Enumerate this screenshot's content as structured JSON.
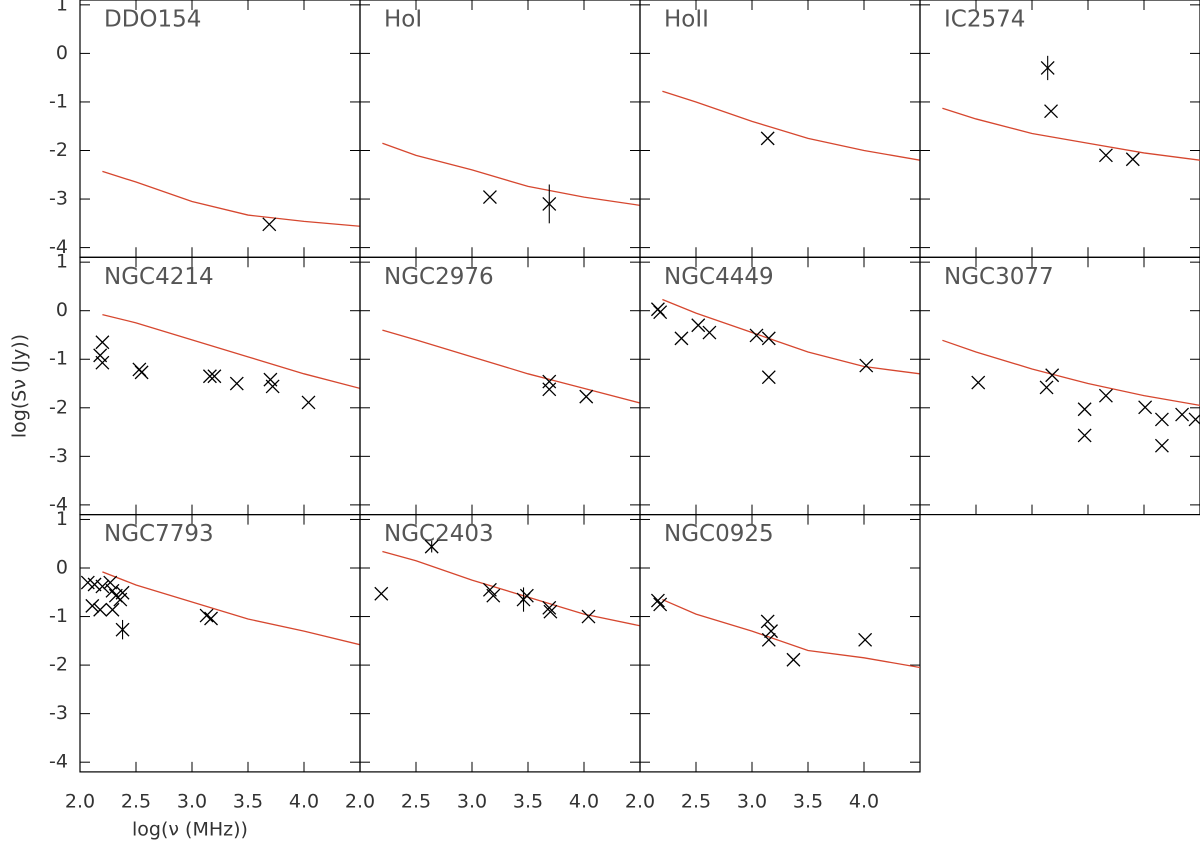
{
  "chart_data": {
    "type": "scatter",
    "xlabel": "log(ν (MHz))",
    "ylabel": "log(Sν (Jy))",
    "xlim": [
      2.0,
      4.5
    ],
    "ylim": [
      -4.2,
      1.1
    ],
    "xticks": [
      {
        "value": 2,
        "label": "2.0"
      },
      {
        "value": 2.5,
        "label": "2.5"
      },
      {
        "value": 3,
        "label": "3.0"
      },
      {
        "value": 3.5,
        "label": "3.5"
      },
      {
        "value": 4,
        "label": "4.0"
      }
    ],
    "yticks": [
      -4,
      -3,
      -2,
      -1,
      0,
      1
    ],
    "model_color": "#d6472f",
    "marker_color": "#000000",
    "panels": [
      {
        "title": "DDO154",
        "model_x": [
          2.2,
          2.5,
          3.0,
          3.5,
          4.0,
          4.5
        ],
        "model_y": [
          -2.43,
          -2.65,
          -3.05,
          -3.33,
          -3.46,
          -3.56
        ],
        "x": [
          3.69
        ],
        "y": [
          -3.52
        ],
        "yerr": [
          null
        ]
      },
      {
        "title": "HoI",
        "model_x": [
          2.2,
          2.5,
          3.0,
          3.5,
          4.0,
          4.5
        ],
        "model_y": [
          -1.85,
          -2.1,
          -2.4,
          -2.74,
          -2.96,
          -3.13
        ],
        "x": [
          3.16,
          3.69
        ],
        "y": [
          -2.96,
          -3.1
        ],
        "yerr": [
          null,
          0.4
        ]
      },
      {
        "title": "HoII",
        "model_x": [
          2.2,
          2.5,
          3.0,
          3.5,
          4.0,
          4.5
        ],
        "model_y": [
          -0.78,
          -1.0,
          -1.4,
          -1.75,
          -2.0,
          -2.2
        ],
        "x": [
          3.14
        ],
        "y": [
          -1.75
        ],
        "yerr": [
          null
        ]
      },
      {
        "title": "IC2574",
        "model_x": [
          2.2,
          2.5,
          3.0,
          3.5,
          4.0,
          4.5
        ],
        "model_y": [
          -1.13,
          -1.35,
          -1.65,
          -1.85,
          -2.05,
          -2.2
        ],
        "x": [
          3.14,
          3.17,
          3.66,
          3.9
        ],
        "y": [
          -0.3,
          -1.19,
          -2.1,
          -2.18
        ],
        "yerr": [
          0.25,
          null,
          null,
          null
        ]
      },
      {
        "title": "NGC4214",
        "model_x": [
          2.2,
          2.5,
          3.0,
          3.5,
          4.0,
          4.5
        ],
        "model_y": [
          -0.08,
          -0.25,
          -0.6,
          -0.95,
          -1.3,
          -1.6
        ],
        "x": [
          2.2,
          2.18,
          2.2,
          2.53,
          2.55,
          3.16,
          3.2,
          3.4,
          3.7,
          3.72,
          4.04
        ],
        "y": [
          -0.65,
          -0.92,
          -1.07,
          -1.21,
          -1.27,
          -1.35,
          -1.35,
          -1.5,
          -1.42,
          -1.56,
          -1.89
        ],
        "yerr": [
          null,
          null,
          null,
          null,
          null,
          null,
          null,
          null,
          null,
          null,
          null
        ]
      },
      {
        "title": "NGC2976",
        "model_x": [
          2.2,
          2.5,
          3.0,
          3.5,
          4.0,
          4.5
        ],
        "model_y": [
          -0.4,
          -0.6,
          -0.95,
          -1.3,
          -1.6,
          -1.9
        ],
        "x": [
          3.69,
          3.69,
          4.02
        ],
        "y": [
          -1.46,
          -1.62,
          -1.77
        ],
        "yerr": [
          null,
          null,
          null
        ]
      },
      {
        "title": "NGC4449",
        "model_x": [
          2.2,
          2.5,
          3.0,
          3.5,
          4.0,
          4.5
        ],
        "model_y": [
          0.23,
          -0.05,
          -0.45,
          -0.85,
          -1.15,
          -1.3
        ],
        "x": [
          2.16,
          2.18,
          2.37,
          2.52,
          2.62,
          3.04,
          3.15,
          3.15,
          4.02
        ],
        "y": [
          0.03,
          -0.03,
          -0.57,
          -0.3,
          -0.45,
          -0.51,
          -0.57,
          -1.37,
          -1.13
        ],
        "yerr": [
          null,
          null,
          null,
          null,
          null,
          null,
          null,
          null,
          null
        ]
      },
      {
        "title": "NGC3077",
        "model_x": [
          2.2,
          2.5,
          3.0,
          3.5,
          4.0,
          4.5
        ],
        "model_y": [
          -0.61,
          -0.85,
          -1.2,
          -1.5,
          -1.75,
          -1.95
        ],
        "x": [
          2.52,
          3.13,
          3.18,
          3.47,
          3.47,
          3.66,
          4.01,
          4.16,
          4.16,
          4.34,
          4.46
        ],
        "y": [
          -1.48,
          -1.58,
          -1.33,
          -2.03,
          -2.57,
          -1.75,
          -1.99,
          -2.24,
          -2.78,
          -2.14,
          -2.24
        ],
        "yerr": [
          null,
          null,
          null,
          null,
          null,
          null,
          null,
          null,
          null,
          null,
          null
        ]
      },
      {
        "title": "NGC7793",
        "model_x": [
          2.2,
          2.5,
          3.0,
          3.5,
          4.0,
          4.5
        ],
        "model_y": [
          -0.08,
          -0.35,
          -0.7,
          -1.05,
          -1.3,
          -1.58
        ],
        "x": [
          2.07,
          2.13,
          2.2,
          2.11,
          2.18,
          2.27,
          2.29,
          2.32,
          2.29,
          2.36,
          2.38,
          2.38,
          3.13,
          3.17
        ],
        "y": [
          -0.3,
          -0.34,
          -0.38,
          -0.78,
          -0.86,
          -0.3,
          -0.47,
          -0.57,
          -0.86,
          -0.65,
          -0.51,
          -1.27,
          -0.98,
          -1.04
        ],
        "yerr": [
          null,
          null,
          null,
          null,
          null,
          null,
          null,
          null,
          null,
          null,
          null,
          0.2,
          null,
          null
        ]
      },
      {
        "title": "NGC2403",
        "model_x": [
          2.2,
          2.5,
          3.0,
          3.5,
          4.0,
          4.5
        ],
        "model_y": [
          0.34,
          0.15,
          -0.25,
          -0.6,
          -0.95,
          -1.19
        ],
        "x": [
          2.19,
          2.64,
          3.16,
          3.19,
          3.46,
          3.49,
          3.69,
          3.7,
          4.04
        ],
        "y": [
          -0.53,
          0.44,
          -0.45,
          -0.57,
          -0.65,
          -0.57,
          -0.82,
          -0.9,
          -1.0
        ],
        "yerr": [
          null,
          0.12,
          null,
          null,
          0.25,
          null,
          null,
          null,
          null
        ]
      },
      {
        "title": "NGC0925",
        "model_x": [
          2.2,
          2.5,
          3.0,
          3.5,
          4.0,
          4.5
        ],
        "model_y": [
          -0.65,
          -0.95,
          -1.3,
          -1.7,
          -1.85,
          -2.05
        ],
        "x": [
          2.16,
          2.18,
          3.14,
          3.17,
          3.15,
          3.37,
          4.01
        ],
        "y": [
          -0.67,
          -0.75,
          -1.1,
          -1.3,
          -1.48,
          -1.89,
          -1.48
        ],
        "yerr": [
          null,
          null,
          null,
          null,
          null,
          null,
          null
        ]
      }
    ]
  }
}
